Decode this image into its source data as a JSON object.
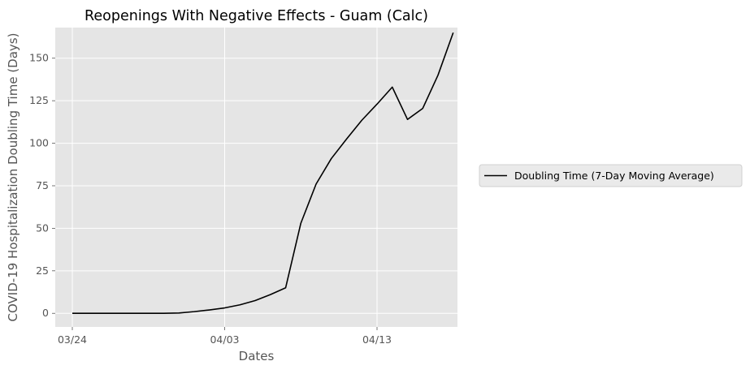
{
  "chart_data": {
    "type": "line",
    "title": "Reopenings With Negative Effects - Guam (Calc)",
    "xlabel": "Dates",
    "ylabel": "COVID-19 Hospitalization Doubling Time (Days)",
    "x_tick_labels": [
      "03/24",
      "04/03",
      "04/13"
    ],
    "y_ticks": [
      0,
      25,
      50,
      75,
      100,
      125,
      150
    ],
    "ylim": [
      -8,
      168
    ],
    "x_start": "03/24",
    "series": [
      {
        "name": "Doubling Time (7-Day Moving Average)",
        "color": "#000000",
        "x": [
          "03/24",
          "03/25",
          "03/26",
          "03/27",
          "03/28",
          "03/29",
          "03/30",
          "03/31",
          "04/01",
          "04/02",
          "04/03",
          "04/04",
          "04/05",
          "04/06",
          "04/07",
          "04/08",
          "04/09",
          "04/10",
          "04/11",
          "04/12",
          "04/13",
          "04/14",
          "04/15",
          "04/16",
          "04/17",
          "04/18"
        ],
        "values": [
          0,
          0,
          0,
          0,
          0,
          0,
          0,
          0.2,
          1,
          2,
          3.2,
          5,
          7.5,
          11,
          15,
          53,
          76,
          91,
          102.5,
          113.5,
          123,
          133,
          114,
          120.5,
          140,
          165
        ]
      }
    ],
    "legend_position": "right",
    "grid": true,
    "colors": {
      "plot_bg": "#e5e5e5",
      "grid": "#ffffff",
      "text": "#555555",
      "title": "#000000"
    }
  }
}
